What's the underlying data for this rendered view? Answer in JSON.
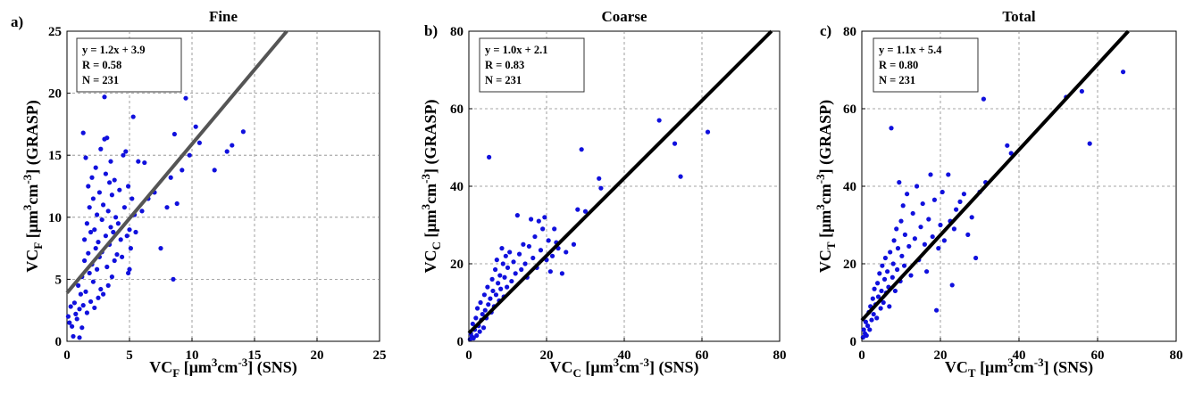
{
  "chart_data": [
    {
      "type": "scatter",
      "panel_label": "a)",
      "title": "Fine",
      "xlim": [
        0,
        25
      ],
      "ylim": [
        0,
        25
      ],
      "xticks": [
        0,
        5,
        10,
        15,
        20,
        25
      ],
      "yticks": [
        0,
        5,
        10,
        15,
        20,
        25
      ],
      "xlabel": {
        "base": "VC",
        "sub": "F",
        "mid": " [μm",
        "sup1": "3",
        "mid2": "cm",
        "sup2": "-3",
        "tail": "] (SNS)"
      },
      "ylabel": {
        "base": "VC",
        "sub": "F",
        "mid": " [μm",
        "sup1": "3",
        "mid2": "cm",
        "sup2": "-3",
        "tail": "] (GRASP)"
      },
      "stats": [
        "y = 1.2x + 3.9",
        "R = 0.58",
        "N = 231"
      ],
      "fit": {
        "slope": 1.2,
        "intercept": 3.9,
        "color": "#555555"
      },
      "point_color": "#1010dd",
      "points": [
        [
          0.1,
          2.0
        ],
        [
          0.2,
          1.5
        ],
        [
          0.3,
          2.8
        ],
        [
          0.4,
          1.2
        ],
        [
          0.5,
          0.4
        ],
        [
          0.6,
          3.1
        ],
        [
          0.7,
          2.2
        ],
        [
          0.8,
          1.8
        ],
        [
          0.9,
          4.5
        ],
        [
          1.0,
          0.3
        ],
        [
          1.0,
          2.6
        ],
        [
          1.1,
          3.8
        ],
        [
          1.2,
          1.1
        ],
        [
          1.2,
          5.2
        ],
        [
          1.3,
          16.8
        ],
        [
          1.3,
          2.9
        ],
        [
          1.4,
          6.5
        ],
        [
          1.4,
          8.2
        ],
        [
          1.5,
          14.8
        ],
        [
          1.5,
          4.0
        ],
        [
          1.6,
          9.5
        ],
        [
          1.6,
          2.3
        ],
        [
          1.7,
          12.5
        ],
        [
          1.7,
          7.1
        ],
        [
          1.8,
          10.8
        ],
        [
          1.8,
          5.5
        ],
        [
          1.9,
          3.2
        ],
        [
          1.9,
          8.8
        ],
        [
          2.0,
          13.2
        ],
        [
          2.0,
          6.2
        ],
        [
          2.1,
          4.8
        ],
        [
          2.1,
          11.5
        ],
        [
          2.2,
          9.0
        ],
        [
          2.2,
          2.7
        ],
        [
          2.3,
          7.5
        ],
        [
          2.3,
          14.0
        ],
        [
          2.4,
          5.8
        ],
        [
          2.4,
          10.2
        ],
        [
          2.5,
          3.5
        ],
        [
          2.5,
          8.0
        ],
        [
          2.6,
          12.0
        ],
        [
          2.6,
          6.8
        ],
        [
          2.7,
          4.2
        ],
        [
          2.7,
          15.5
        ],
        [
          2.8,
          9.8
        ],
        [
          2.8,
          7.2
        ],
        [
          2.9,
          11.0
        ],
        [
          2.9,
          3.8
        ],
        [
          3.0,
          19.7
        ],
        [
          3.0,
          16.3
        ],
        [
          3.1,
          13.5
        ],
        [
          3.1,
          8.5
        ],
        [
          3.2,
          16.4
        ],
        [
          3.2,
          6.0
        ],
        [
          3.3,
          10.5
        ],
        [
          3.3,
          4.5
        ],
        [
          3.4,
          12.8
        ],
        [
          3.4,
          7.8
        ],
        [
          3.5,
          14.5
        ],
        [
          3.5,
          9.2
        ],
        [
          3.6,
          5.2
        ],
        [
          3.6,
          11.8
        ],
        [
          3.7,
          8.8
        ],
        [
          3.8,
          6.5
        ],
        [
          3.8,
          13.0
        ],
        [
          3.9,
          10.0
        ],
        [
          4.0,
          7.0
        ],
        [
          4.1,
          9.5
        ],
        [
          4.2,
          12.2
        ],
        [
          4.3,
          8.2
        ],
        [
          4.4,
          6.8
        ],
        [
          4.5,
          15.0
        ],
        [
          4.6,
          10.8
        ],
        [
          4.7,
          15.3
        ],
        [
          4.8,
          8.5
        ],
        [
          4.9,
          12.5
        ],
        [
          4.9,
          5.5
        ],
        [
          5.0,
          9.0
        ],
        [
          5.0,
          5.8
        ],
        [
          5.1,
          7.5
        ],
        [
          5.2,
          11.5
        ],
        [
          5.3,
          18.1
        ],
        [
          5.4,
          10.2
        ],
        [
          5.5,
          8.8
        ],
        [
          5.7,
          14.5
        ],
        [
          6.0,
          10.5
        ],
        [
          6.2,
          14.4
        ],
        [
          6.5,
          11.5
        ],
        [
          7.0,
          12.0
        ],
        [
          7.5,
          7.5
        ],
        [
          8.0,
          10.8
        ],
        [
          8.3,
          13.2
        ],
        [
          8.5,
          5.0
        ],
        [
          8.6,
          16.7
        ],
        [
          8.8,
          11.1
        ],
        [
          9.2,
          13.8
        ],
        [
          9.5,
          19.6
        ],
        [
          9.8,
          15.0
        ],
        [
          10.3,
          17.3
        ],
        [
          10.6,
          16.0
        ],
        [
          11.8,
          13.8
        ],
        [
          12.8,
          15.3
        ],
        [
          13.2,
          15.8
        ],
        [
          14.1,
          16.9
        ]
      ]
    },
    {
      "type": "scatter",
      "panel_label": "b)",
      "title": "Coarse",
      "xlim": [
        0,
        80
      ],
      "ylim": [
        0,
        80
      ],
      "xticks": [
        0,
        20,
        40,
        60,
        80
      ],
      "yticks": [
        0,
        20,
        40,
        60,
        80
      ],
      "xlabel": {
        "base": "VC",
        "sub": "C",
        "mid": " [μm",
        "sup1": "3",
        "mid2": "cm",
        "sup2": "-3",
        "tail": "] (SNS)"
      },
      "ylabel": {
        "base": "VC",
        "sub": "C",
        "mid": " [μm",
        "sup1": "3",
        "mid2": "cm",
        "sup2": "-3",
        "tail": "] (GRASP)"
      },
      "stats": [
        "y = 1.0x + 2.1",
        "R = 0.83",
        "N = 231"
      ],
      "fit": {
        "slope": 1.0,
        "intercept": 2.1,
        "color": "#000000"
      },
      "point_color": "#1010dd",
      "points": [
        [
          0.3,
          0.5
        ],
        [
          0.5,
          2.0
        ],
        [
          0.8,
          1.2
        ],
        [
          1.0,
          4.5
        ],
        [
          1.2,
          0.8
        ],
        [
          1.5,
          3.0
        ],
        [
          1.8,
          6.0
        ],
        [
          2.0,
          1.5
        ],
        [
          2.2,
          8.5
        ],
        [
          2.5,
          4.0
        ],
        [
          2.8,
          2.5
        ],
        [
          3.0,
          10.0
        ],
        [
          3.2,
          5.5
        ],
        [
          3.5,
          7.0
        ],
        [
          3.8,
          3.5
        ],
        [
          4.0,
          12.0
        ],
        [
          4.2,
          8.0
        ],
        [
          4.5,
          6.0
        ],
        [
          4.8,
          14.0
        ],
        [
          5.0,
          9.5
        ],
        [
          5.2,
          47.5
        ],
        [
          5.5,
          11.0
        ],
        [
          5.8,
          7.5
        ],
        [
          6.0,
          16.0
        ],
        [
          6.2,
          13.0
        ],
        [
          6.5,
          9.0
        ],
        [
          6.8,
          18.5
        ],
        [
          7.0,
          12.0
        ],
        [
          7.2,
          21.0
        ],
        [
          7.5,
          15.0
        ],
        [
          7.8,
          10.5
        ],
        [
          8.0,
          17.0
        ],
        [
          8.2,
          13.5
        ],
        [
          8.5,
          24.0
        ],
        [
          8.8,
          20.0
        ],
        [
          9.0,
          11.5
        ],
        [
          9.2,
          16.5
        ],
        [
          9.5,
          22.0
        ],
        [
          9.8,
          14.0
        ],
        [
          10.0,
          19.0
        ],
        [
          10.5,
          23.0
        ],
        [
          11.0,
          15.5
        ],
        [
          11.5,
          20.5
        ],
        [
          12.0,
          17.5
        ],
        [
          12.5,
          32.5
        ],
        [
          13.0,
          22.5
        ],
        [
          13.5,
          18.5
        ],
        [
          14.0,
          25.0
        ],
        [
          14.5,
          20.0
        ],
        [
          15.0,
          16.5
        ],
        [
          15.5,
          24.5
        ],
        [
          16.0,
          31.5
        ],
        [
          16.5,
          21.5
        ],
        [
          17.0,
          27.0
        ],
        [
          17.5,
          19.0
        ],
        [
          18.0,
          31.0
        ],
        [
          18.5,
          23.5
        ],
        [
          19.0,
          29.0
        ],
        [
          19.5,
          32.0
        ],
        [
          20.0,
          21.0
        ],
        [
          20.5,
          26.0
        ],
        [
          21.0,
          18.0
        ],
        [
          21.5,
          22.0
        ],
        [
          22.0,
          29.0
        ],
        [
          22.5,
          25.5
        ],
        [
          23.0,
          24.0
        ],
        [
          24.0,
          17.5
        ],
        [
          25.0,
          23.0
        ],
        [
          27.0,
          25.0
        ],
        [
          28.0,
          34.0
        ],
        [
          29.0,
          49.5
        ],
        [
          30.0,
          33.5
        ],
        [
          33.5,
          42.0
        ],
        [
          34.0,
          39.5
        ],
        [
          49.0,
          57.0
        ],
        [
          53.0,
          51.0
        ],
        [
          54.5,
          42.5
        ],
        [
          61.5,
          54.0
        ]
      ]
    },
    {
      "type": "scatter",
      "panel_label": "c)",
      "title": "Total",
      "xlim": [
        0,
        80
      ],
      "ylim": [
        0,
        80
      ],
      "xticks": [
        0,
        20,
        40,
        60,
        80
      ],
      "yticks": [
        0,
        20,
        40,
        60,
        80
      ],
      "xlabel": {
        "base": "VC",
        "sub": "T",
        "mid": " [μm",
        "sup1": "3",
        "mid2": "cm",
        "sup2": "-3",
        "tail": "] (SNS)"
      },
      "ylabel": {
        "base": "VC",
        "sub": "T",
        "mid": " [μm",
        "sup1": "3",
        "mid2": "cm",
        "sup2": "-3",
        "tail": "] (GRASP)"
      },
      "stats": [
        "y = 1.1x + 5.4",
        "R = 0.80",
        "N = 231"
      ],
      "fit": {
        "slope": 1.1,
        "intercept": 5.4,
        "color": "#000000"
      },
      "point_color": "#1010dd",
      "points": [
        [
          0.3,
          1.0
        ],
        [
          0.5,
          3.0
        ],
        [
          0.8,
          2.0
        ],
        [
          1.0,
          5.0
        ],
        [
          1.2,
          1.5
        ],
        [
          1.5,
          4.0
        ],
        [
          1.8,
          7.5
        ],
        [
          2.0,
          3.0
        ],
        [
          2.2,
          9.0
        ],
        [
          2.5,
          5.5
        ],
        [
          2.8,
          11.0
        ],
        [
          3.0,
          7.0
        ],
        [
          3.2,
          13.5
        ],
        [
          3.5,
          9.5
        ],
        [
          3.8,
          6.0
        ],
        [
          4.0,
          15.0
        ],
        [
          4.2,
          11.5
        ],
        [
          4.5,
          17.5
        ],
        [
          4.8,
          8.5
        ],
        [
          5.0,
          13.0
        ],
        [
          5.2,
          19.5
        ],
        [
          5.5,
          10.0
        ],
        [
          5.8,
          16.0
        ],
        [
          6.0,
          21.5
        ],
        [
          6.2,
          12.5
        ],
        [
          6.5,
          18.0
        ],
        [
          6.8,
          14.0
        ],
        [
          7.0,
          9.0
        ],
        [
          7.2,
          23.0
        ],
        [
          7.5,
          55.0
        ],
        [
          7.8,
          16.5
        ],
        [
          8.0,
          20.0
        ],
        [
          8.2,
          26.0
        ],
        [
          8.5,
          13.0
        ],
        [
          8.8,
          29.0
        ],
        [
          9.0,
          18.5
        ],
        [
          9.2,
          24.0
        ],
        [
          9.5,
          41.0
        ],
        [
          9.8,
          15.5
        ],
        [
          10.0,
          31.0
        ],
        [
          10.2,
          22.0
        ],
        [
          10.5,
          35.0
        ],
        [
          10.8,
          19.5
        ],
        [
          11.0,
          27.5
        ],
        [
          11.5,
          38.0
        ],
        [
          12.0,
          24.5
        ],
        [
          12.5,
          17.0
        ],
        [
          13.0,
          33.0
        ],
        [
          13.5,
          26.5
        ],
        [
          14.0,
          40.0
        ],
        [
          14.5,
          21.0
        ],
        [
          15.0,
          29.5
        ],
        [
          15.5,
          35.5
        ],
        [
          16.0,
          25.0
        ],
        [
          16.5,
          18.0
        ],
        [
          17.0,
          31.5
        ],
        [
          17.5,
          43.0
        ],
        [
          18.0,
          27.0
        ],
        [
          18.5,
          36.5
        ],
        [
          19.0,
          8.0
        ],
        [
          19.5,
          24.0
        ],
        [
          20.0,
          30.0
        ],
        [
          20.5,
          38.5
        ],
        [
          21.0,
          26.0
        ],
        [
          22.0,
          43.0
        ],
        [
          22.5,
          31.0
        ],
        [
          23.0,
          14.5
        ],
        [
          23.5,
          29.0
        ],
        [
          24.0,
          34.0
        ],
        [
          25.0,
          36.0
        ],
        [
          26.0,
          38.0
        ],
        [
          27.0,
          27.5
        ],
        [
          28.0,
          32.0
        ],
        [
          29.0,
          21.5
        ],
        [
          30.0,
          38.5
        ],
        [
          31.0,
          62.5
        ],
        [
          31.5,
          41.0
        ],
        [
          37.0,
          50.5
        ],
        [
          38.0,
          48.5
        ],
        [
          52.0,
          63.0
        ],
        [
          56.0,
          64.5
        ],
        [
          58.0,
          51.0
        ],
        [
          66.5,
          69.5
        ]
      ]
    }
  ]
}
